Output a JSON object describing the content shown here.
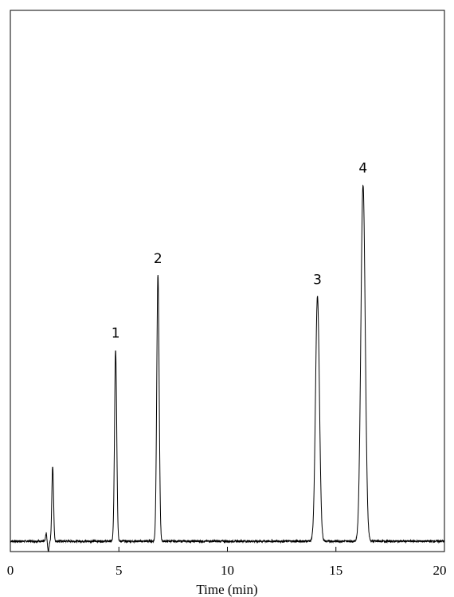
{
  "chart_data": {
    "type": "line",
    "title": "",
    "xlabel": "Time (min)",
    "ylabel": "",
    "xlim": [
      0,
      20
    ],
    "x_ticks": [
      0,
      5,
      10,
      15,
      20
    ],
    "x_tick_labels": [
      "0",
      "5",
      "10",
      "15",
      "20"
    ],
    "grid": false,
    "legend": "none",
    "line_color": "#000000",
    "baseline": 0,
    "injection_disturbance": {
      "time": 1.65,
      "up": 0.015,
      "down": -0.02
    },
    "peaks": [
      {
        "label": "",
        "time": 1.95,
        "height": 0.14,
        "width": 0.04
      },
      {
        "label": "1",
        "time": 4.85,
        "height": 0.36,
        "width": 0.05
      },
      {
        "label": "2",
        "time": 6.8,
        "height": 0.5,
        "width": 0.055
      },
      {
        "label": "3",
        "time": 14.15,
        "height": 0.46,
        "width": 0.09
      },
      {
        "label": "4",
        "time": 16.25,
        "height": 0.67,
        "width": 0.1
      }
    ]
  }
}
